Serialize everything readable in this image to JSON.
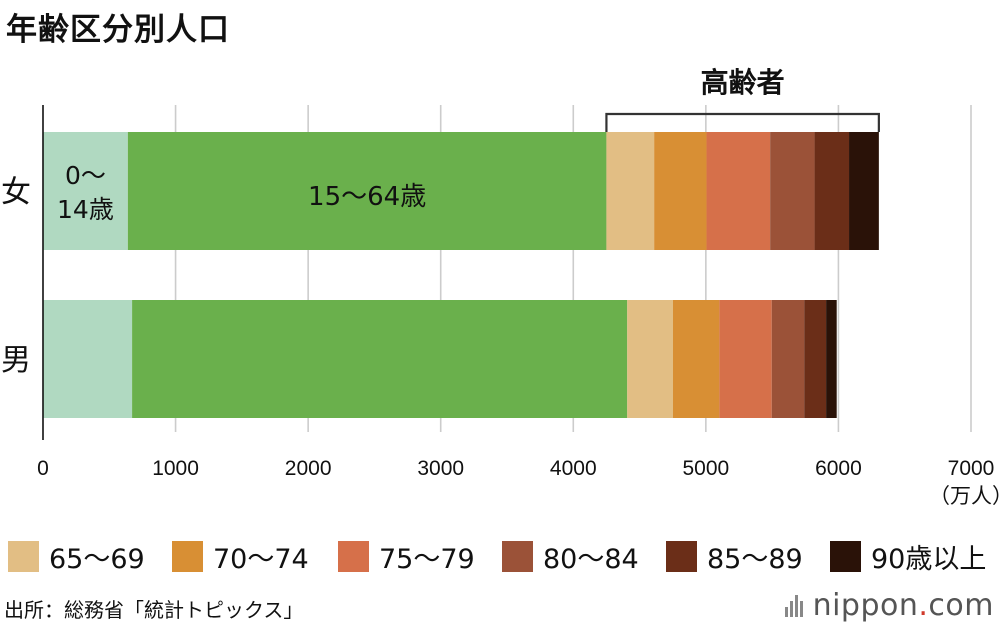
{
  "title": "年齢区分別人口",
  "source": "出所：総務省「統計トピックス」",
  "brand": {
    "main": "nippon",
    "dot": ".",
    "tld": "com"
  },
  "colors": {
    "c0_14": "#b0d9c1",
    "c15_64": "#6ab04c",
    "c65_69": "#e2be84",
    "c70_74": "#d88f34",
    "c75_79": "#d6704a",
    "c80_84": "#9b5238",
    "c85_89": "#6b2e18",
    "c90": "#2a1208",
    "grid": "#cccccc"
  },
  "chart_data": {
    "type": "bar",
    "orientation": "horizontal",
    "stacked": true,
    "title": "年齢区分別人口",
    "categories": [
      "女",
      "男"
    ],
    "unit": "（万人）",
    "xlim": [
      0,
      7000
    ],
    "xticks": [
      "0",
      "1000",
      "2000",
      "3000",
      "4000",
      "5000",
      "6000",
      "7000"
    ],
    "grid": true,
    "series": [
      {
        "name": "0～14歳",
        "color_key": "c0_14",
        "values": [
          640,
          672
        ]
      },
      {
        "name": "15～64歳",
        "color_key": "c15_64",
        "values": [
          3610,
          3735
        ]
      },
      {
        "name": "65～69",
        "color_key": "c65_69",
        "values": [
          360,
          345
        ]
      },
      {
        "name": "70～74",
        "color_key": "c70_74",
        "values": [
          395,
          350
        ]
      },
      {
        "name": "75～79",
        "color_key": "c75_79",
        "values": [
          480,
          395
        ]
      },
      {
        "name": "80～84",
        "color_key": "c80_84",
        "values": [
          335,
          245
        ]
      },
      {
        "name": "85～89",
        "color_key": "c85_89",
        "values": [
          260,
          165
        ]
      },
      {
        "name": "90歳以上",
        "color_key": "c90",
        "values": [
          225,
          80
        ]
      }
    ],
    "annotations": {
      "bracket_label": "高齢者",
      "label_0_14_line1": "0～",
      "label_0_14_line2": "14歳",
      "label_15_64": "15～64歳"
    },
    "legend": {
      "position": "bottom",
      "entries": [
        "65～69",
        "70～74",
        "75～79",
        "80～84",
        "85～89",
        "90歳以上"
      ]
    }
  }
}
